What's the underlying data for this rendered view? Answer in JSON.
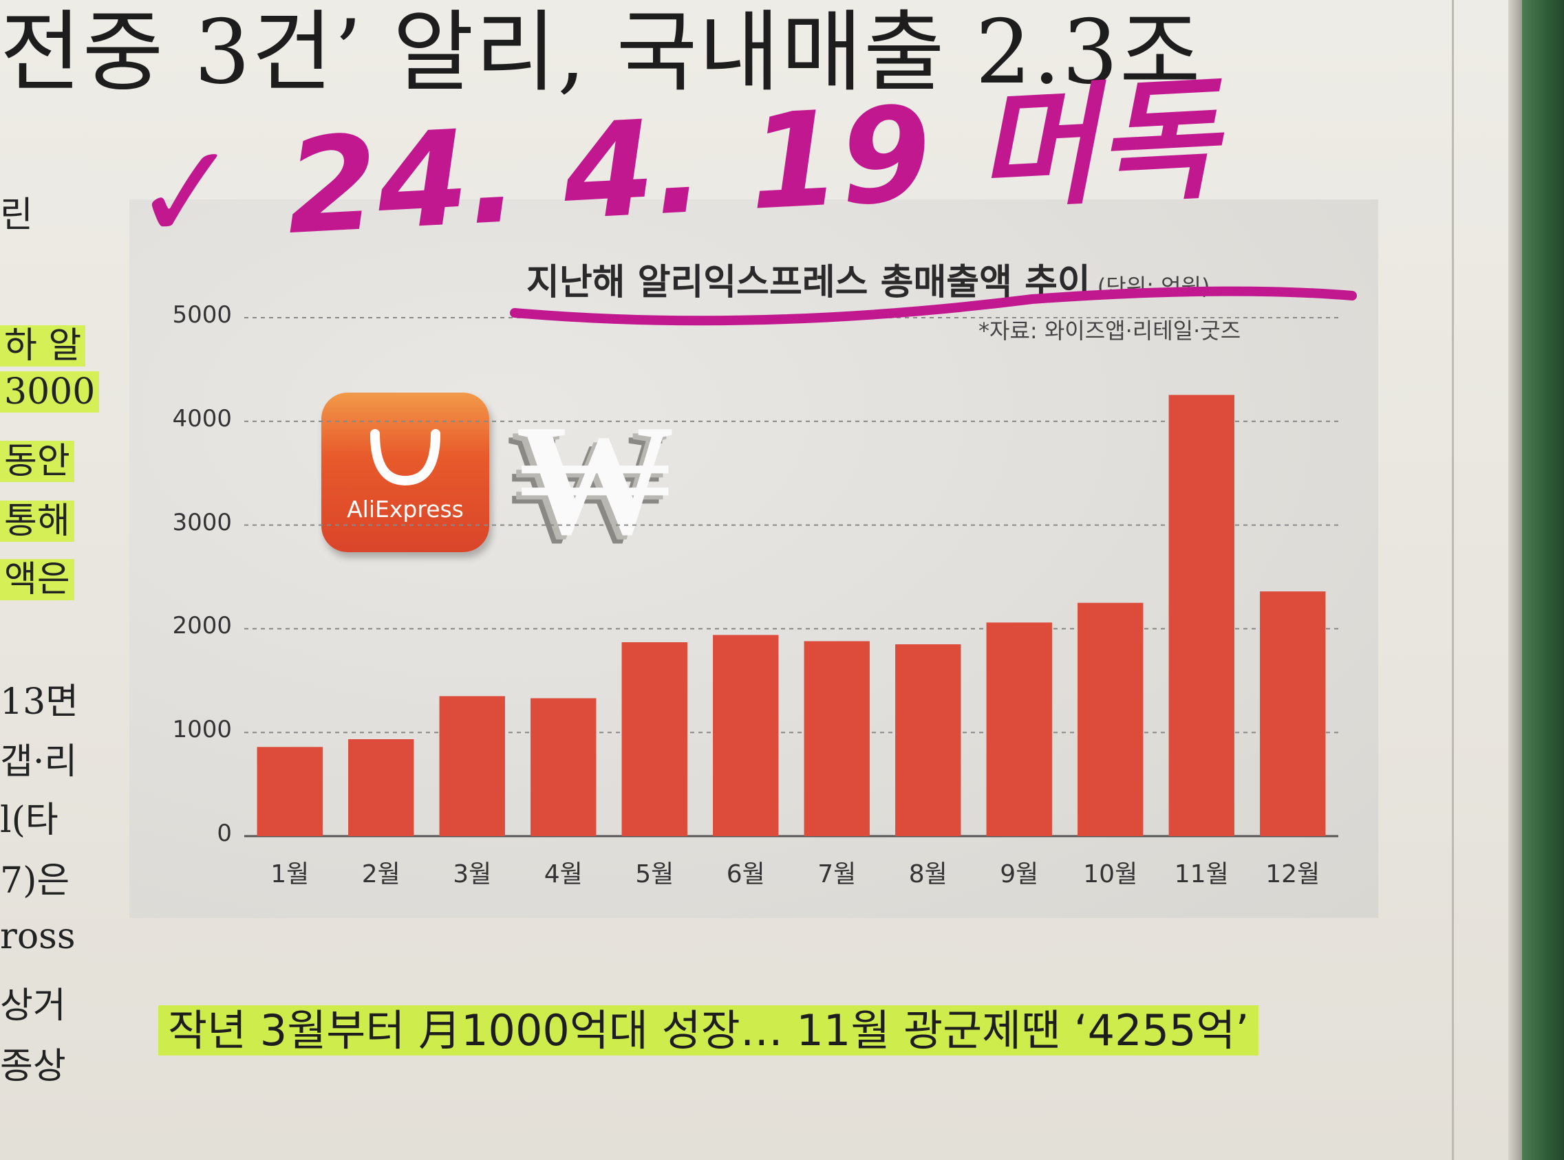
{
  "headline": {
    "text": "전중 3건’ 알리, 국내매출 2.3조"
  },
  "side_text": [
    "린",
    "하 알",
    "3000",
    "동안",
    "통해",
    "액은",
    "13면",
    "갭·리",
    "l(타",
    "7)은",
    "ross",
    "상거",
    "종상"
  ],
  "handwriting": {
    "text": "✓ 24. 4. 19 머독"
  },
  "logo": {
    "text": "AliExpress"
  },
  "caption": {
    "text": "작년 3월부터 月1000억대 성장… 11월 광군제땐 ‘4255억’"
  },
  "colors": {
    "bar": "#dd4b3b",
    "highlight": "#ccf228",
    "marker_pink": "#c2188f"
  },
  "chart_data": {
    "type": "bar",
    "title": "지난해 알리익스프레스 총매출액 추이",
    "unit": "(단위: 억원)",
    "source": "*자료: 와이즈앱·리테일·굿즈",
    "categories": [
      "1월",
      "2월",
      "3월",
      "4월",
      "5월",
      "6월",
      "7월",
      "8월",
      "9월",
      "10월",
      "11월",
      "12월"
    ],
    "values": [
      860,
      935,
      1350,
      1330,
      1870,
      1940,
      1880,
      1850,
      2060,
      2250,
      4255,
      2360
    ],
    "yticks": [
      0,
      1000,
      2000,
      3000,
      4000,
      5000
    ],
    "ylim": [
      0,
      5000
    ],
    "grid": true
  }
}
